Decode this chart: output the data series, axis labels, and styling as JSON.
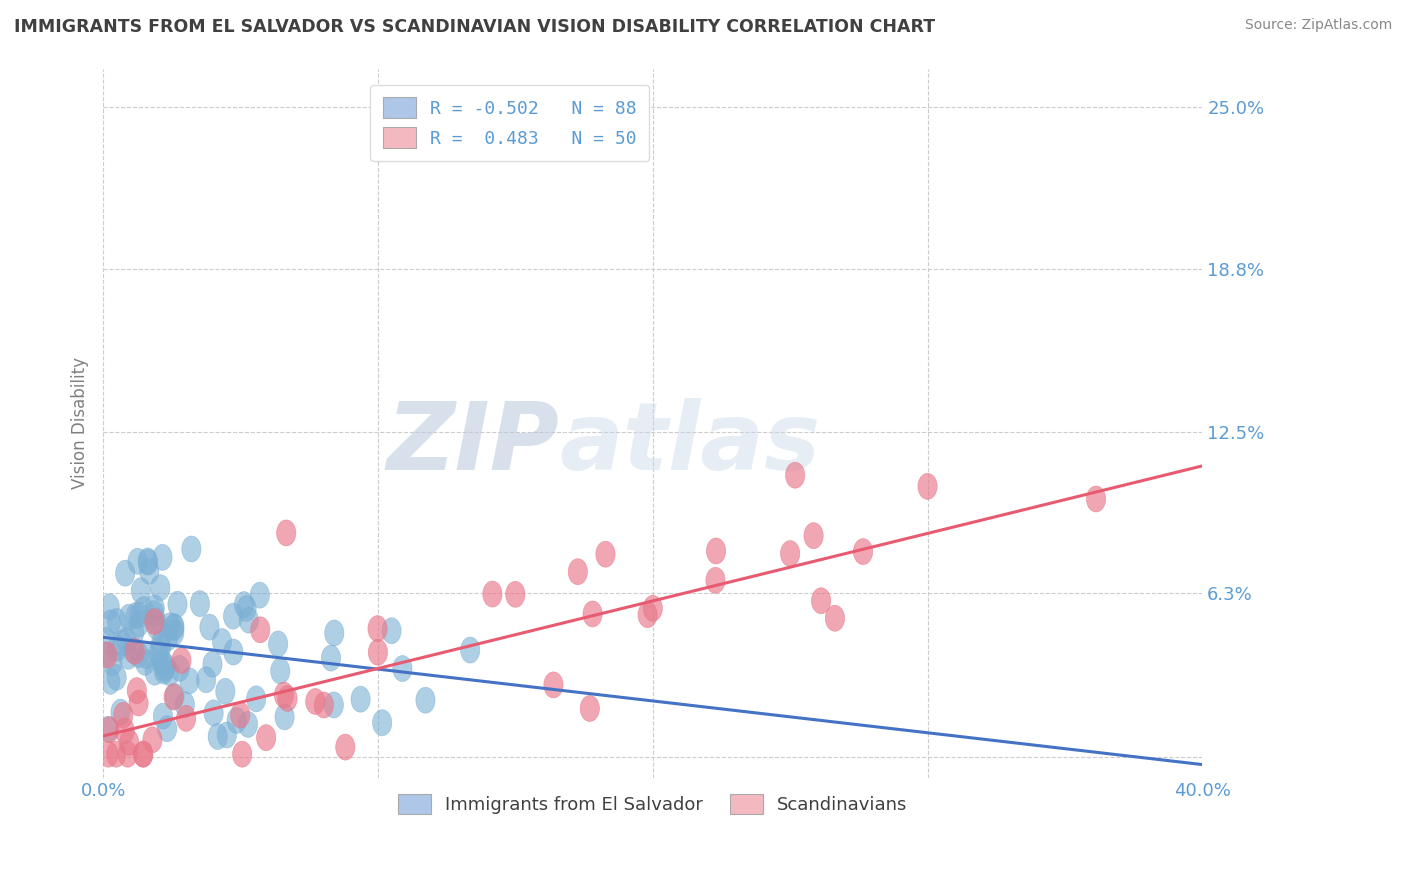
{
  "title": "IMMIGRANTS FROM EL SALVADOR VS SCANDINAVIAN VISION DISABILITY CORRELATION CHART",
  "source": "Source: ZipAtlas.com",
  "ylabel": "Vision Disability",
  "xlim": [
    0.0,
    0.4
  ],
  "ylim": [
    -0.008,
    0.265
  ],
  "xticks": [
    0.0,
    0.1,
    0.2,
    0.3,
    0.4
  ],
  "xtick_labels": [
    "0.0%",
    "",
    "",
    "",
    "40.0%"
  ],
  "ytick_vals": [
    0.0,
    0.063,
    0.125,
    0.188,
    0.25
  ],
  "ytick_labels": [
    "",
    "6.3%",
    "12.5%",
    "18.8%",
    "25.0%"
  ],
  "legend_labels_bottom": [
    "Immigrants from El Salvador",
    "Scandinavians"
  ],
  "blue_trend_x": [
    0.0,
    0.4
  ],
  "blue_trend_y": [
    0.046,
    -0.003
  ],
  "pink_trend_x": [
    0.0,
    0.4
  ],
  "pink_trend_y": [
    0.008,
    0.112
  ],
  "blue_color": "#7bafd4",
  "pink_color": "#e8788a",
  "blue_fill": "#aec6e8",
  "pink_fill": "#f4b8c1",
  "grid_color": "#cccccc",
  "title_color": "#404040",
  "tick_label_color": "#5b9bd5",
  "background_color": "#ffffff"
}
